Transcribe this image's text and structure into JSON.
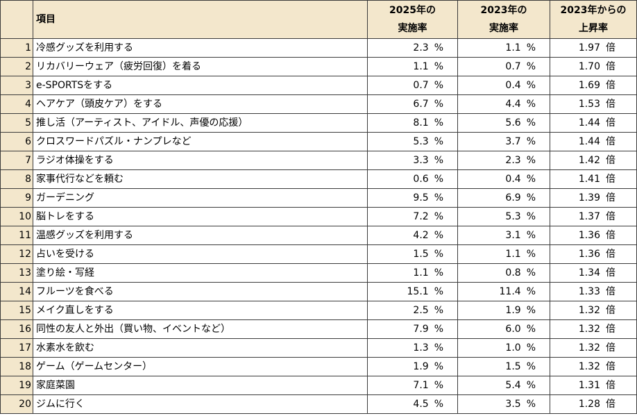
{
  "table": {
    "headers": {
      "item": "項目",
      "col2025_line1": "2025年の",
      "col2025_line2": "実施率",
      "col2023_line1": "2023年の",
      "col2023_line2": "実施率",
      "rise_line1": "2023年からの",
      "rise_line2": "上昇率"
    },
    "units": {
      "percent": "%",
      "times": "倍"
    },
    "rows": [
      {
        "rank": "1",
        "item": "冷感グッズを利用する",
        "r2025": "2.3",
        "r2023": "1.1",
        "rise": "1.97"
      },
      {
        "rank": "2",
        "item": "リカバリーウェア（疲労回復）を着る",
        "r2025": "1.1",
        "r2023": "0.7",
        "rise": "1.70"
      },
      {
        "rank": "3",
        "item": "e-SPORTSをする",
        "r2025": "0.7",
        "r2023": "0.4",
        "rise": "1.69"
      },
      {
        "rank": "4",
        "item": "ヘアケア（頭皮ケア）をする",
        "r2025": "6.7",
        "r2023": "4.4",
        "rise": "1.53"
      },
      {
        "rank": "5",
        "item": "推し活（アーティスト、アイドル、声優の応援）",
        "r2025": "8.1",
        "r2023": "5.6",
        "rise": "1.44"
      },
      {
        "rank": "6",
        "item": "クロスワードパズル・ナンプレなど",
        "r2025": "5.3",
        "r2023": "3.7",
        "rise": "1.44"
      },
      {
        "rank": "7",
        "item": "ラジオ体操をする",
        "r2025": "3.3",
        "r2023": "2.3",
        "rise": "1.42"
      },
      {
        "rank": "8",
        "item": "家事代行などを頼む",
        "r2025": "0.6",
        "r2023": "0.4",
        "rise": "1.41"
      },
      {
        "rank": "9",
        "item": "ガーデニング",
        "r2025": "9.5",
        "r2023": "6.9",
        "rise": "1.39"
      },
      {
        "rank": "10",
        "item": "脳トレをする",
        "r2025": "7.2",
        "r2023": "5.3",
        "rise": "1.37"
      },
      {
        "rank": "11",
        "item": "温感グッズを利用する",
        "r2025": "4.2",
        "r2023": "3.1",
        "rise": "1.36"
      },
      {
        "rank": "12",
        "item": "占いを受ける",
        "r2025": "1.5",
        "r2023": "1.1",
        "rise": "1.36"
      },
      {
        "rank": "13",
        "item": "塗り絵・写経",
        "r2025": "1.1",
        "r2023": "0.8",
        "rise": "1.34"
      },
      {
        "rank": "14",
        "item": "フルーツを食べる",
        "r2025": "15.1",
        "r2023": "11.4",
        "rise": "1.33"
      },
      {
        "rank": "15",
        "item": "メイク直しをする",
        "r2025": "2.5",
        "r2023": "1.9",
        "rise": "1.32"
      },
      {
        "rank": "16",
        "item": "同性の友人と外出（買い物、イベントなど）",
        "r2025": "7.9",
        "r2023": "6.0",
        "rise": "1.32"
      },
      {
        "rank": "17",
        "item": "水素水を飲む",
        "r2025": "1.3",
        "r2023": "1.0",
        "rise": "1.32"
      },
      {
        "rank": "18",
        "item": "ゲーム（ゲームセンター）",
        "r2025": "1.9",
        "r2023": "1.5",
        "rise": "1.32"
      },
      {
        "rank": "19",
        "item": "家庭菜園",
        "r2025": "7.1",
        "r2023": "5.4",
        "rise": "1.31"
      },
      {
        "rank": "20",
        "item": "ジムに行く",
        "r2025": "4.5",
        "r2023": "3.5",
        "rise": "1.28"
      }
    ]
  }
}
